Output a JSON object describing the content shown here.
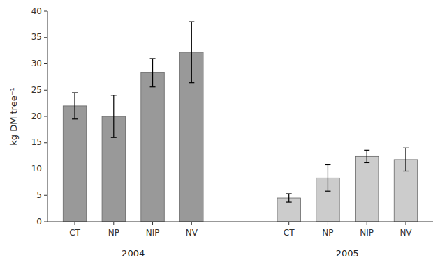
{
  "chart_data": {
    "type": "bar",
    "categories": [
      "CT",
      "NP",
      "NIP",
      "NV"
    ],
    "series": [
      {
        "name": "2004",
        "color": "#999999",
        "values": [
          22,
          20,
          28.3,
          32.2
        ],
        "errors": [
          2.5,
          4.0,
          2.7,
          5.8
        ]
      },
      {
        "name": "2005",
        "color": "#cccccc",
        "values": [
          4.5,
          8.3,
          12.4,
          11.8
        ],
        "errors": [
          0.8,
          2.5,
          1.2,
          2.2
        ]
      }
    ],
    "ylabel": "kg DM tree⁻¹",
    "ylim": [
      0,
      40
    ],
    "yticks": [
      0,
      5,
      10,
      15,
      20,
      25,
      30,
      35,
      40
    ],
    "grid": false,
    "legend": false
  }
}
